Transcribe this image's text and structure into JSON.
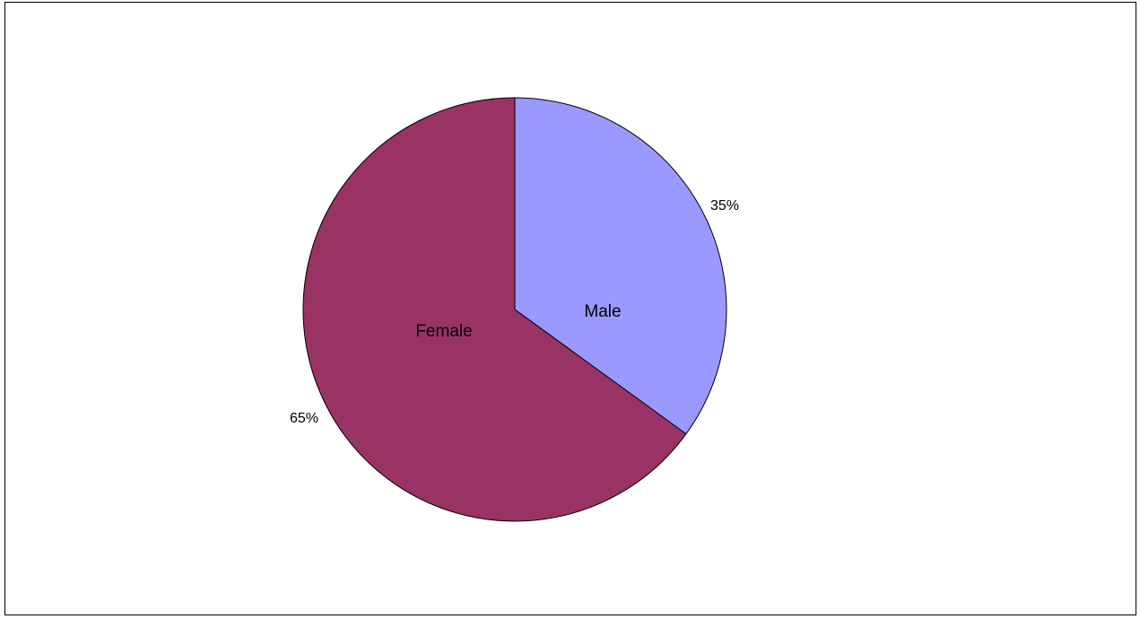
{
  "chart_data": {
    "type": "pie",
    "categories": [
      "Male",
      "Female"
    ],
    "values": [
      35,
      65
    ],
    "value_labels": [
      "35%",
      "65%"
    ],
    "colors": [
      "#9999ff",
      "#993366"
    ],
    "title": "",
    "legend": "none",
    "start_angle": "12 o'clock",
    "direction": "clockwise"
  }
}
